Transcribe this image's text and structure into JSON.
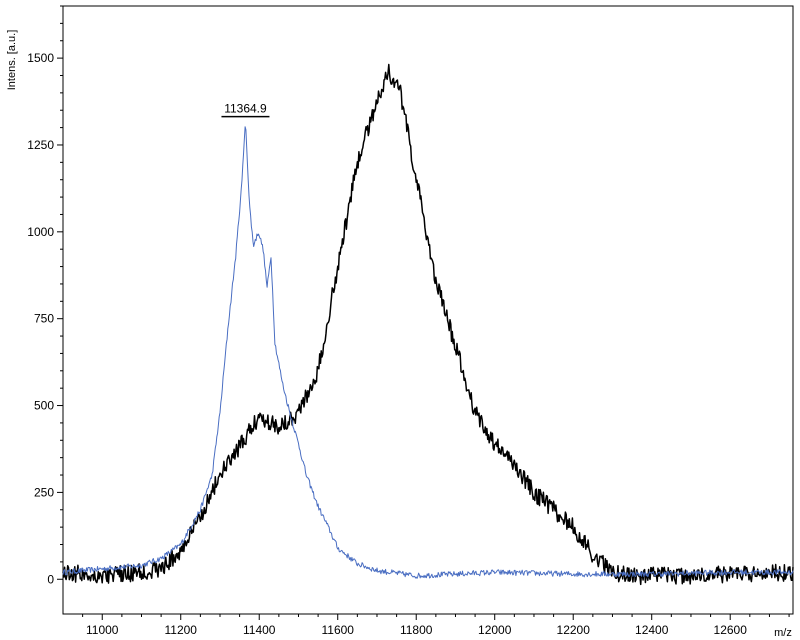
{
  "chart_data": {
    "type": "line",
    "title": "",
    "xlabel": "m/z",
    "ylabel": "Intens. [a.u.]",
    "xlim": [
      10900,
      12760
    ],
    "ylim": [
      -100,
      1650
    ],
    "x_ticks": [
      11000,
      11200,
      11400,
      11600,
      11800,
      12000,
      12200,
      12400,
      12600
    ],
    "x_tick_labels": [
      "11000",
      "11200",
      "11400",
      "11600",
      "11800",
      "12000",
      "12200",
      "12400",
      "12600"
    ],
    "y_ticks": [
      0,
      250,
      500,
      750,
      1000,
      1250,
      1500
    ],
    "y_tick_labels": [
      "0",
      "250",
      "500",
      "750",
      "1000",
      "1250",
      "1500"
    ],
    "grid": false,
    "legend": "none",
    "series": [
      {
        "color": "#4a6ec2",
        "line_width": 1,
        "noise": 8,
        "x": [
          10900,
          11000,
          11100,
          11150,
          11200,
          11250,
          11280,
          11300,
          11320,
          11340,
          11355,
          11364.9,
          11375,
          11385,
          11398,
          11410,
          11420,
          11430,
          11440,
          11460,
          11480,
          11500,
          11520,
          11550,
          11580,
          11600,
          11650,
          11700,
          11800,
          12000,
          12200,
          12400,
          12600,
          12760
        ],
        "y": [
          20,
          30,
          40,
          60,
          100,
          200,
          300,
          480,
          720,
          930,
          1130,
          1320,
          1080,
          960,
          1000,
          950,
          840,
          930,
          680,
          560,
          470,
          390,
          300,
          210,
          140,
          90,
          45,
          25,
          10,
          20,
          15,
          15,
          20,
          20
        ]
      },
      {
        "color": "#000000",
        "line_width": 1.5,
        "noise": 25,
        "x": [
          10900,
          11000,
          11100,
          11150,
          11200,
          11250,
          11300,
          11350,
          11400,
          11450,
          11500,
          11550,
          11600,
          11650,
          11700,
          11730,
          11760,
          11800,
          11850,
          11900,
          11950,
          12000,
          12050,
          12100,
          12150,
          12200,
          12250,
          12300,
          12350,
          12400,
          12500,
          12600,
          12760
        ],
        "y": [
          20,
          10,
          20,
          30,
          80,
          180,
          300,
          380,
          470,
          440,
          480,
          600,
          900,
          1200,
          1380,
          1460,
          1400,
          1150,
          860,
          670,
          480,
          390,
          330,
          250,
          200,
          150,
          70,
          20,
          10,
          10,
          10,
          15,
          20
        ]
      }
    ],
    "annotations": [
      {
        "text": "11364.9",
        "x": 11364.9,
        "y": 1320
      }
    ]
  }
}
